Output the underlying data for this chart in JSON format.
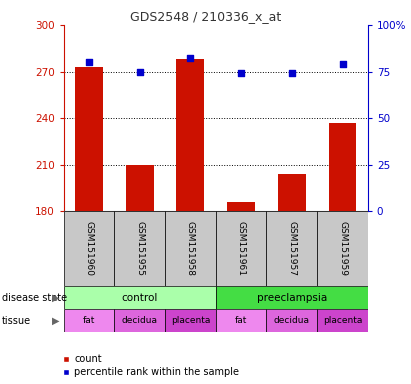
{
  "title": "GDS2548 / 210336_x_at",
  "samples": [
    "GSM151960",
    "GSM151955",
    "GSM151958",
    "GSM151961",
    "GSM151957",
    "GSM151959"
  ],
  "counts": [
    273,
    210,
    278,
    186,
    204,
    237
  ],
  "percentile_ranks": [
    80,
    75,
    82,
    74,
    74,
    79
  ],
  "ylim_left": [
    180,
    300
  ],
  "ylim_right": [
    0,
    100
  ],
  "yticks_left": [
    180,
    210,
    240,
    270,
    300
  ],
  "yticks_right": [
    0,
    25,
    50,
    75,
    100
  ],
  "bar_color": "#CC1100",
  "dot_color": "#0000CC",
  "disease_state": [
    {
      "label": "control",
      "span": [
        0,
        3
      ],
      "color": "#AAFFAA"
    },
    {
      "label": "preeclampsia",
      "span": [
        3,
        6
      ],
      "color": "#44DD44"
    }
  ],
  "tissue": [
    {
      "label": "fat",
      "span": [
        0,
        1
      ],
      "color": "#EE88EE"
    },
    {
      "label": "decidua",
      "span": [
        1,
        2
      ],
      "color": "#DD66DD"
    },
    {
      "label": "placenta",
      "span": [
        2,
        3
      ],
      "color": "#CC44CC"
    },
    {
      "label": "fat",
      "span": [
        3,
        4
      ],
      "color": "#EE88EE"
    },
    {
      "label": "decidua",
      "span": [
        4,
        5
      ],
      "color": "#DD66DD"
    },
    {
      "label": "placenta",
      "span": [
        5,
        6
      ],
      "color": "#CC44CC"
    }
  ],
  "left_axis_color": "#CC1100",
  "right_axis_color": "#0000CC",
  "grid_color": "#000000",
  "background_color": "#FFFFFF",
  "sample_box_color": "#C8C8C8"
}
